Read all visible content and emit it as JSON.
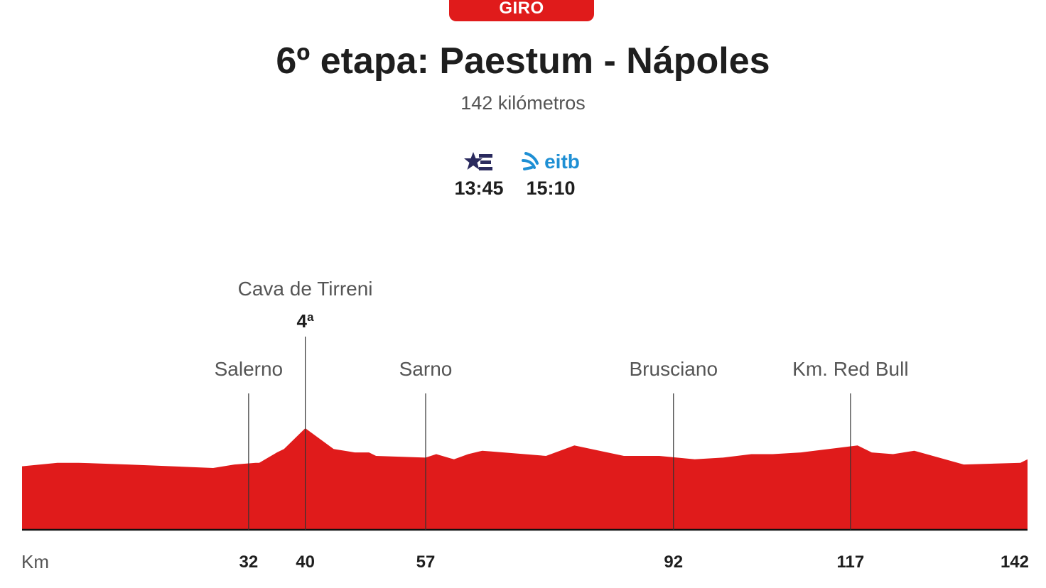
{
  "header": {
    "badge": "GIRO",
    "title": "6º etapa: Paestum - Nápoles",
    "subtitle": "142 kilómetros"
  },
  "broadcasts": [
    {
      "logo": "euskaltel-star-e-icon",
      "time": "13:45",
      "color": "#2a2a5e"
    },
    {
      "logo": "eitb-logo",
      "logo_text": "eitb",
      "time": "15:10",
      "color": "#1e8fd4"
    }
  ],
  "colors": {
    "accent": "#e01b1b",
    "profile": "#e01b1b"
  },
  "chart_data": {
    "type": "area",
    "title": "6º etapa: Paestum - Nápoles",
    "xlabel": "Km",
    "ylabel": "",
    "xlim": [
      0,
      142
    ],
    "x_ticks": [
      32,
      40,
      57,
      92,
      117,
      142
    ],
    "profile": {
      "x": [
        0,
        5,
        8,
        15,
        27,
        30,
        33,
        33.5,
        36,
        37,
        40,
        44,
        47,
        49,
        50,
        57,
        58.5,
        61,
        63,
        65,
        74,
        78,
        85,
        90,
        95,
        99,
        103,
        106,
        110,
        116,
        118,
        120,
        123,
        126,
        133,
        141,
        142
      ],
      "y": [
        30,
        31,
        31,
        30.5,
        29.5,
        30.5,
        31,
        31,
        34,
        35,
        41,
        35,
        34,
        34,
        33,
        32.5,
        33.5,
        32,
        33.5,
        34.5,
        33,
        36,
        33,
        33,
        32,
        32.5,
        33.5,
        33.5,
        34,
        35.5,
        36,
        34,
        33.5,
        34.5,
        30.5,
        31,
        32
      ]
    },
    "points": [
      {
        "name": "Salerno",
        "km": 32
      },
      {
        "name": "Cava de Tirreni",
        "km": 40,
        "category": "4ª"
      },
      {
        "name": "Sarno",
        "km": 57
      },
      {
        "name": "Brusciano",
        "km": 92
      },
      {
        "name": "Km. Red Bull",
        "km": 117
      }
    ]
  }
}
